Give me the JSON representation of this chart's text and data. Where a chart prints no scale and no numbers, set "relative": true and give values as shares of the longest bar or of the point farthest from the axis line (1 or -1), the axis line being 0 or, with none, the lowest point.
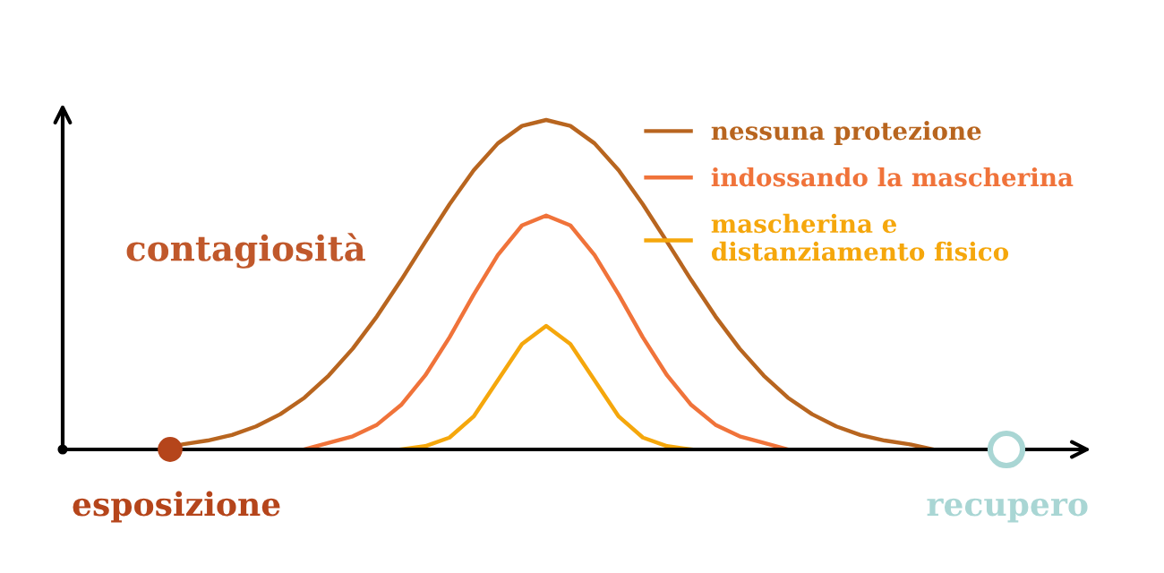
{
  "chart_data": {
    "type": "line",
    "relative": true,
    "ylabel": "contagiosità",
    "legend": "top right",
    "marker": "none",
    "line_style": "solid",
    "annotations": [
      "esposizione",
      "recupero"
    ],
    "categories": [
      null,
      null,
      null,
      null,
      null,
      null,
      null,
      null,
      null,
      null,
      null,
      null,
      null,
      null,
      null,
      null,
      null,
      null,
      null,
      null,
      null,
      null,
      null,
      null,
      null,
      null,
      null,
      null,
      null,
      null,
      null,
      null,
      null,
      null,
      null,
      null,
      null,
      null,
      null,
      null,
      null,
      null,
      null
    ],
    "series": [
      {
        "name": "nessuna protezione",
        "color": "#b8651f",
        "values": [
          null,
          null,
          null,
          null,
          0,
          0.016,
          0.027,
          0.044,
          0.07,
          0.107,
          0.157,
          0.224,
          0.306,
          0.404,
          0.514,
          0.63,
          0.744,
          0.847,
          0.929,
          0.982,
          1,
          0.982,
          0.929,
          0.847,
          0.744,
          0.63,
          0.514,
          0.404,
          0.306,
          0.224,
          0.157,
          0.107,
          0.07,
          0.044,
          0.027,
          0.016,
          0,
          null,
          null,
          null,
          null,
          null,
          null
        ]
      },
      {
        "name": "indossando la mascherina",
        "color": "#f0733a",
        "values": [
          null,
          null,
          null,
          null,
          null,
          null,
          null,
          null,
          null,
          null,
          0,
          0.02,
          0.04,
          0.075,
          0.135,
          0.225,
          0.34,
          0.47,
          0.59,
          0.68,
          0.71,
          0.68,
          0.59,
          0.47,
          0.34,
          0.225,
          0.135,
          0.075,
          0.04,
          0.02,
          0,
          null,
          null,
          null,
          null,
          null,
          null,
          null,
          null,
          null,
          null,
          null,
          null
        ]
      },
      {
        "name": "mascherina e\ndistanziamento fisico",
        "color": "#f5a70c",
        "values": [
          null,
          null,
          null,
          null,
          null,
          null,
          null,
          null,
          null,
          null,
          null,
          null,
          null,
          null,
          0,
          0.01,
          0.036,
          0.1,
          0.21,
          0.32,
          0.375,
          0.32,
          0.21,
          0.1,
          0.036,
          0.01,
          0,
          null,
          null,
          null,
          null,
          null,
          null,
          null,
          null,
          null,
          null,
          null,
          null,
          null,
          null,
          null,
          null
        ]
      }
    ]
  }
}
